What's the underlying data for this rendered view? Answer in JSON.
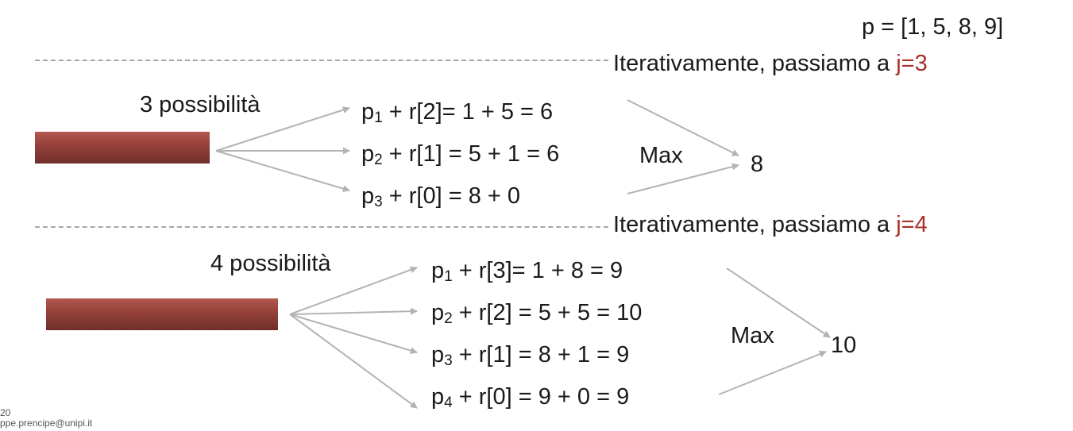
{
  "array_def": "p = [1, 5, 8, 9]",
  "colors": {
    "accent": "#a8322a",
    "rod": "#934039",
    "arrow": "#b3b3b3",
    "dash": "#a6a6a6"
  },
  "section1": {
    "heading_text": "Iterativamente, passiamo a ",
    "heading_j": "j=3",
    "label": "3 possibilità",
    "rows": [
      {
        "p": "p",
        "sub": "1",
        "rest": " + r[2]= 1 + 5 = 6"
      },
      {
        "p": "p",
        "sub": "2",
        "rest": " + r[1] = 5 + 1 = 6"
      },
      {
        "p": "p",
        "sub": "3",
        "rest": " + r[0] = 8 + 0"
      }
    ],
    "max_label": "Max",
    "result": "8"
  },
  "section2": {
    "heading_text": "Iterativamente, passiamo a ",
    "heading_j": "j=4",
    "label": "4 possibilità",
    "rows": [
      {
        "p": "p",
        "sub": "1",
        "rest": " + r[3]= 1 + 8 = 9"
      },
      {
        "p": "p",
        "sub": "2",
        "rest": " + r[2] = 5 + 5 = 10"
      },
      {
        "p": "p",
        "sub": "3",
        "rest": " + r[1] = 8 + 1 = 9"
      },
      {
        "p": "p",
        "sub": "4",
        "rest": " + r[0] = 9 + 0 = 9"
      }
    ],
    "max_label": "Max",
    "result": "10"
  },
  "footer": {
    "page_number": "20",
    "email": "ppe.prencipe@unipi.it"
  }
}
